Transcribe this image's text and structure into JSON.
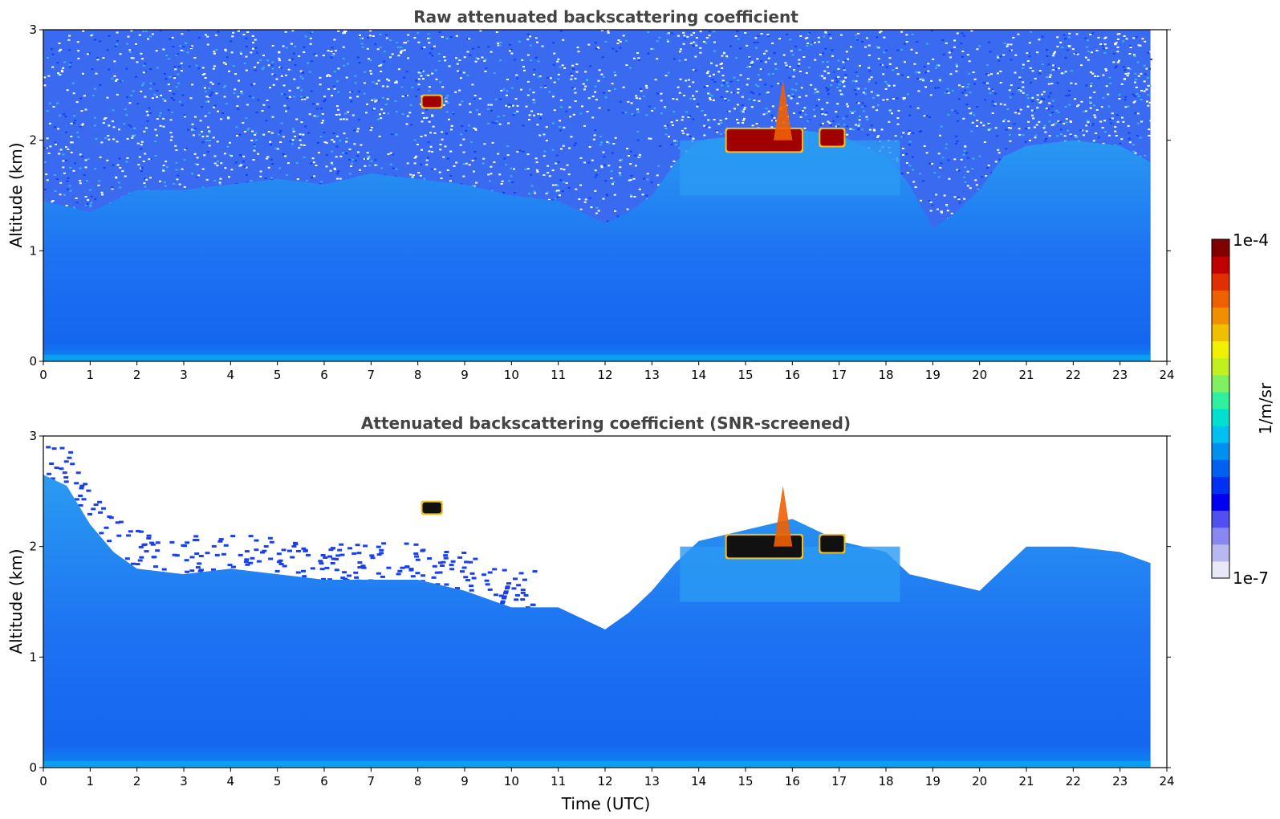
{
  "chart_data": [
    {
      "type": "heatmap",
      "title": "Raw attenuated backscattering coefficient",
      "xlabel": "",
      "ylabel": "Altitude (km)",
      "xlim": [
        0,
        24
      ],
      "ylim": [
        0,
        3
      ],
      "x_ticks": [
        "0",
        "1",
        "2",
        "3",
        "4",
        "5",
        "6",
        "7",
        "8",
        "9",
        "10",
        "11",
        "12",
        "13",
        "14",
        "15",
        "16",
        "17",
        "18",
        "19",
        "20",
        "21",
        "22",
        "23",
        "24"
      ],
      "y_ticks": [
        "0",
        "1",
        "2",
        "3"
      ],
      "data_end_time": 23.65,
      "color_scale": "log",
      "background_levels": [
        {
          "x": 0,
          "y_top": 1.45
        },
        {
          "x": 1,
          "y_top": 1.35
        },
        {
          "x": 1.5,
          "y_top": 1.45
        },
        {
          "x": 2,
          "y_top": 1.55
        },
        {
          "x": 3,
          "y_top": 1.55
        },
        {
          "x": 4,
          "y_top": 1.6
        },
        {
          "x": 5,
          "y_top": 1.65
        },
        {
          "x": 6,
          "y_top": 1.6
        },
        {
          "x": 7,
          "y_top": 1.7
        },
        {
          "x": 8,
          "y_top": 1.65
        },
        {
          "x": 9,
          "y_top": 1.6
        },
        {
          "x": 10,
          "y_top": 1.5
        },
        {
          "x": 11,
          "y_top": 1.45
        },
        {
          "x": 12,
          "y_top": 1.25
        },
        {
          "x": 12.5,
          "y_top": 1.35
        },
        {
          "x": 13,
          "y_top": 1.5
        },
        {
          "x": 13.5,
          "y_top": 1.8
        },
        {
          "x": 14,
          "y_top": 2.0
        },
        {
          "x": 15,
          "y_top": 2.05
        },
        {
          "x": 16,
          "y_top": 2.1
        },
        {
          "x": 17,
          "y_top": 2.05
        },
        {
          "x": 18,
          "y_top": 1.85
        },
        {
          "x": 18.5,
          "y_top": 1.6
        },
        {
          "x": 19,
          "y_top": 1.2
        },
        {
          "x": 19.5,
          "y_top": 1.35
        },
        {
          "x": 20,
          "y_top": 1.55
        },
        {
          "x": 20.5,
          "y_top": 1.85
        },
        {
          "x": 21,
          "y_top": 1.95
        },
        {
          "x": 22,
          "y_top": 2.0
        },
        {
          "x": 23,
          "y_top": 1.95
        },
        {
          "x": 23.65,
          "y_top": 1.8
        }
      ],
      "features": [
        {
          "kind": "cloud",
          "x": 8.1,
          "x2": 8.5,
          "y": 2.3,
          "y2": 2.4,
          "value": "1e-4"
        },
        {
          "kind": "cloud",
          "x": 14.6,
          "x2": 16.2,
          "y": 1.9,
          "y2": 2.1,
          "value": "1e-4"
        },
        {
          "kind": "cloud",
          "x": 16.6,
          "x2": 17.1,
          "y": 1.95,
          "y2": 2.1,
          "value": "1e-4"
        },
        {
          "kind": "plume",
          "x": 15.6,
          "x2": 16.0,
          "y": 2.0,
          "y2": 2.55,
          "value": "5e-5"
        }
      ]
    },
    {
      "type": "heatmap",
      "title": "Attenuated backscattering coefficient (SNR-screened)",
      "xlabel": "Time (UTC)",
      "ylabel": "Altitude (km)",
      "xlim": [
        0,
        24
      ],
      "ylim": [
        0,
        3
      ],
      "x_ticks": [
        "0",
        "1",
        "2",
        "3",
        "4",
        "5",
        "6",
        "7",
        "8",
        "9",
        "10",
        "11",
        "12",
        "13",
        "14",
        "15",
        "16",
        "17",
        "18",
        "19",
        "20",
        "21",
        "22",
        "23",
        "24"
      ],
      "y_ticks": [
        "0",
        "1",
        "2",
        "3"
      ],
      "data_end_time": 23.65,
      "color_scale": "log",
      "background_levels": [
        {
          "x": 0,
          "y_top": 2.65
        },
        {
          "x": 0.5,
          "y_top": 2.55
        },
        {
          "x": 1,
          "y_top": 2.2
        },
        {
          "x": 1.5,
          "y_top": 1.95
        },
        {
          "x": 2,
          "y_top": 1.8
        },
        {
          "x": 3,
          "y_top": 1.75
        },
        {
          "x": 4,
          "y_top": 1.8
        },
        {
          "x": 5,
          "y_top": 1.75
        },
        {
          "x": 6,
          "y_top": 1.7
        },
        {
          "x": 7,
          "y_top": 1.7
        },
        {
          "x": 8,
          "y_top": 1.7
        },
        {
          "x": 9,
          "y_top": 1.6
        },
        {
          "x": 10,
          "y_top": 1.45
        },
        {
          "x": 11,
          "y_top": 1.45
        },
        {
          "x": 12,
          "y_top": 1.25
        },
        {
          "x": 12.5,
          "y_top": 1.4
        },
        {
          "x": 13,
          "y_top": 1.6
        },
        {
          "x": 13.5,
          "y_top": 1.85
        },
        {
          "x": 14,
          "y_top": 2.05
        },
        {
          "x": 15,
          "y_top": 2.15
        },
        {
          "x": 16,
          "y_top": 2.25
        },
        {
          "x": 17,
          "y_top": 2.05
        },
        {
          "x": 18,
          "y_top": 1.95
        },
        {
          "x": 18.5,
          "y_top": 1.75
        },
        {
          "x": 19,
          "y_top": 1.7
        },
        {
          "x": 20,
          "y_top": 1.6
        },
        {
          "x": 20.5,
          "y_top": 1.8
        },
        {
          "x": 21,
          "y_top": 2.0
        },
        {
          "x": 22,
          "y_top": 2.0
        },
        {
          "x": 23,
          "y_top": 1.95
        },
        {
          "x": 23.65,
          "y_top": 1.85
        }
      ],
      "features": [
        {
          "kind": "cloud",
          "x": 8.1,
          "x2": 8.5,
          "y": 2.3,
          "y2": 2.4,
          "value": "1e-4"
        },
        {
          "kind": "cloud",
          "x": 14.6,
          "x2": 16.2,
          "y": 1.9,
          "y2": 2.1,
          "value": "1e-4"
        },
        {
          "kind": "cloud",
          "x": 16.6,
          "x2": 17.1,
          "y": 1.95,
          "y2": 2.1,
          "value": "1e-4"
        },
        {
          "kind": "plume",
          "x": 15.6,
          "x2": 16.0,
          "y": 2.0,
          "y2": 2.55,
          "value": "5e-5"
        }
      ]
    }
  ],
  "colorbar": {
    "label": "1/m/sr",
    "max_label": "1e-4",
    "min_label": "1e-7",
    "colors": [
      "#e8e8f8",
      "#b8b8f0",
      "#8888f0",
      "#5050f0",
      "#0000f0",
      "#0030f0",
      "#0060f0",
      "#0090f0",
      "#00c0f0",
      "#00e0d0",
      "#30f0a0",
      "#80f060",
      "#c0f020",
      "#f0f000",
      "#f0c000",
      "#f09000",
      "#f06000",
      "#e03000",
      "#c00000",
      "#800000"
    ]
  },
  "palette": {
    "background_low": "#1a5cf0",
    "background_mid": "#1f77f2",
    "aerosol": "#2a9af2",
    "high_noise": "#ffffff",
    "cloud_core": "#a00000",
    "cloud_edge": "#f0c020",
    "screened_cloud": "#111111"
  }
}
